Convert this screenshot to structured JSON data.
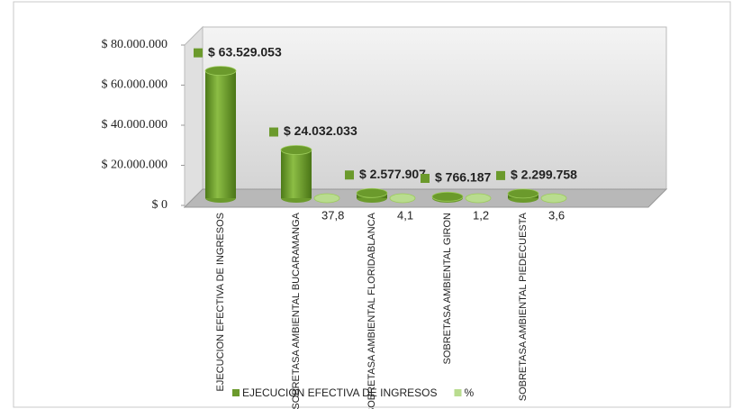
{
  "chart_data": {
    "type": "bar",
    "categories": [
      "EJECUCION EFECTIVA DE INGRESOS",
      "SOBRETASA AMBIENTAL BUCARAMANGA",
      "SOBRETASA AMBIENTAL FLORIDABLANCA",
      "SOBRETASA AMBIENTAL GIRON",
      "SOBRETASA AMBIENTAL PIEDECUESTA"
    ],
    "series": [
      {
        "name": "EJECUCION EFECTIVA DE INGRESOS",
        "color": "#6b9a2c",
        "values": [
          63529053,
          24032033,
          2577907,
          766187,
          2299758
        ],
        "value_labels": [
          "$ 63.529.053",
          "$ 24.032.033",
          "$ 2.577.907",
          "$ 766.187",
          "$ 2.299.758"
        ]
      },
      {
        "name": "%",
        "color": "#b9dc8f",
        "values": [
          null,
          37.8,
          4.1,
          1.2,
          3.6
        ],
        "value_labels": [
          null,
          "37,8",
          "4,1",
          "1,2",
          "3,6"
        ]
      }
    ],
    "ylim": [
      0,
      80000000
    ],
    "yticks": [
      {
        "value": 0,
        "label": "$ 0"
      },
      {
        "value": 20000000,
        "label": "$ 20.000.000"
      },
      {
        "value": 40000000,
        "label": "$ 40.000.000"
      },
      {
        "value": 60000000,
        "label": "$ 60.000.000"
      },
      {
        "value": 80000000,
        "label": "$ 80.000.000"
      }
    ],
    "legend": "bottom"
  }
}
